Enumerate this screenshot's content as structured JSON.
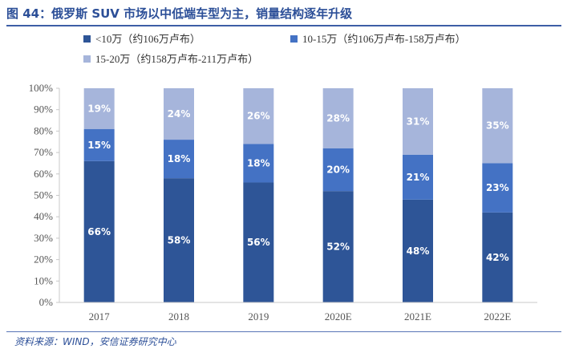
{
  "figure": {
    "title": "图 44：俄罗斯 SUV 市场以中低端车型为主，销量结构逐年升级",
    "source": "资料来源：WIND，安信证券研究中心"
  },
  "colors": {
    "low": "#2e5597",
    "mid": "#4472c4",
    "high": "#a6b5db",
    "axis": "#c8c8c8",
    "title": "#2c4f98"
  },
  "chart_data": {
    "type": "bar",
    "stacked": true,
    "categories": [
      "2017",
      "2018",
      "2019",
      "2020E",
      "2021E",
      "2022E"
    ],
    "series": [
      {
        "name": "<10万（约106万卢布）",
        "values": [
          66,
          58,
          56,
          52,
          48,
          42
        ],
        "labels": [
          "66%",
          "58%",
          "56%",
          "52%",
          "48%",
          "42%"
        ],
        "color": "#2e5597"
      },
      {
        "name": "10-15万（约106万卢布-158万卢布）",
        "values": [
          15,
          18,
          18,
          20,
          21,
          23
        ],
        "labels": [
          "15%",
          "18%",
          "18%",
          "20%",
          "21%",
          "23%"
        ],
        "color": "#4472c4"
      },
      {
        "name": "15-20万（约158万卢布-211万卢布）",
        "values": [
          19,
          24,
          26,
          28,
          31,
          35
        ],
        "labels": [
          "19%",
          "24%",
          "26%",
          "28%",
          "31%",
          "35%"
        ],
        "color": "#a6b5db"
      }
    ],
    "ylim": [
      0,
      100
    ],
    "yticks": [
      "0%",
      "10%",
      "20%",
      "30%",
      "40%",
      "50%",
      "60%",
      "70%",
      "80%",
      "90%",
      "100%"
    ],
    "grid": false,
    "legend": "top-left",
    "xlabel": "",
    "ylabel": ""
  }
}
